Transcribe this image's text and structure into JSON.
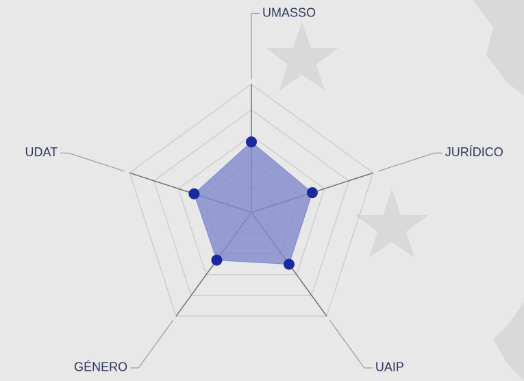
{
  "chart_data": {
    "type": "radar",
    "categories": [
      "UMASSO",
      "JURÍDICO",
      "UAIP",
      "GÉNERO",
      "UDAT"
    ],
    "values": [
      55,
      50,
      50,
      46,
      47
    ],
    "color": "#1a2a9e",
    "fill": "#7f88cc",
    "ylim": [
      0,
      100
    ],
    "yticks": [
      20,
      40,
      60,
      80,
      100
    ],
    "grid": true
  }
}
